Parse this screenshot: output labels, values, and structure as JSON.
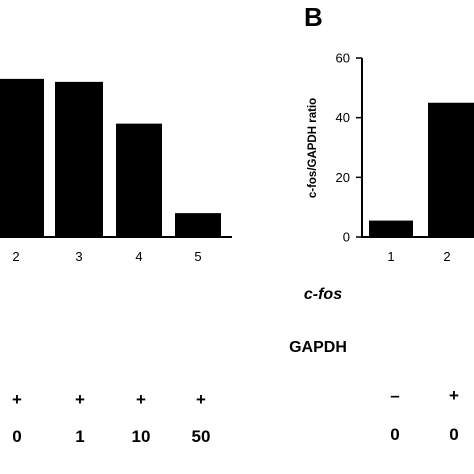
{
  "chart_data": [
    {
      "type": "bar",
      "panel": "",
      "categories": [
        "2",
        "3",
        "4",
        "5"
      ],
      "values": [
        53,
        52,
        38,
        8
      ],
      "ylim": [
        0,
        60
      ],
      "xlabel": "",
      "ylabel": "",
      "color": "#000000"
    },
    {
      "type": "bar",
      "panel": "B",
      "categories": [
        "1",
        "2"
      ],
      "values": [
        5.5,
        45
      ],
      "ylim": [
        0,
        60
      ],
      "yticks": [
        "0",
        "20",
        "40",
        "60"
      ],
      "xlabel": "",
      "ylabel": "c-fos/GAPDH ratio",
      "color": "#000000"
    }
  ],
  "rows": {
    "cfos_label": "c-fos",
    "gapdh_label": "GAPDH"
  },
  "treatments": {
    "left_signs": [
      "+",
      "+",
      "+",
      "+"
    ],
    "left_doses": [
      "0",
      "1",
      "10",
      "50"
    ],
    "right_signs": [
      "–",
      "+"
    ],
    "right_doses": [
      "0",
      "0"
    ]
  }
}
